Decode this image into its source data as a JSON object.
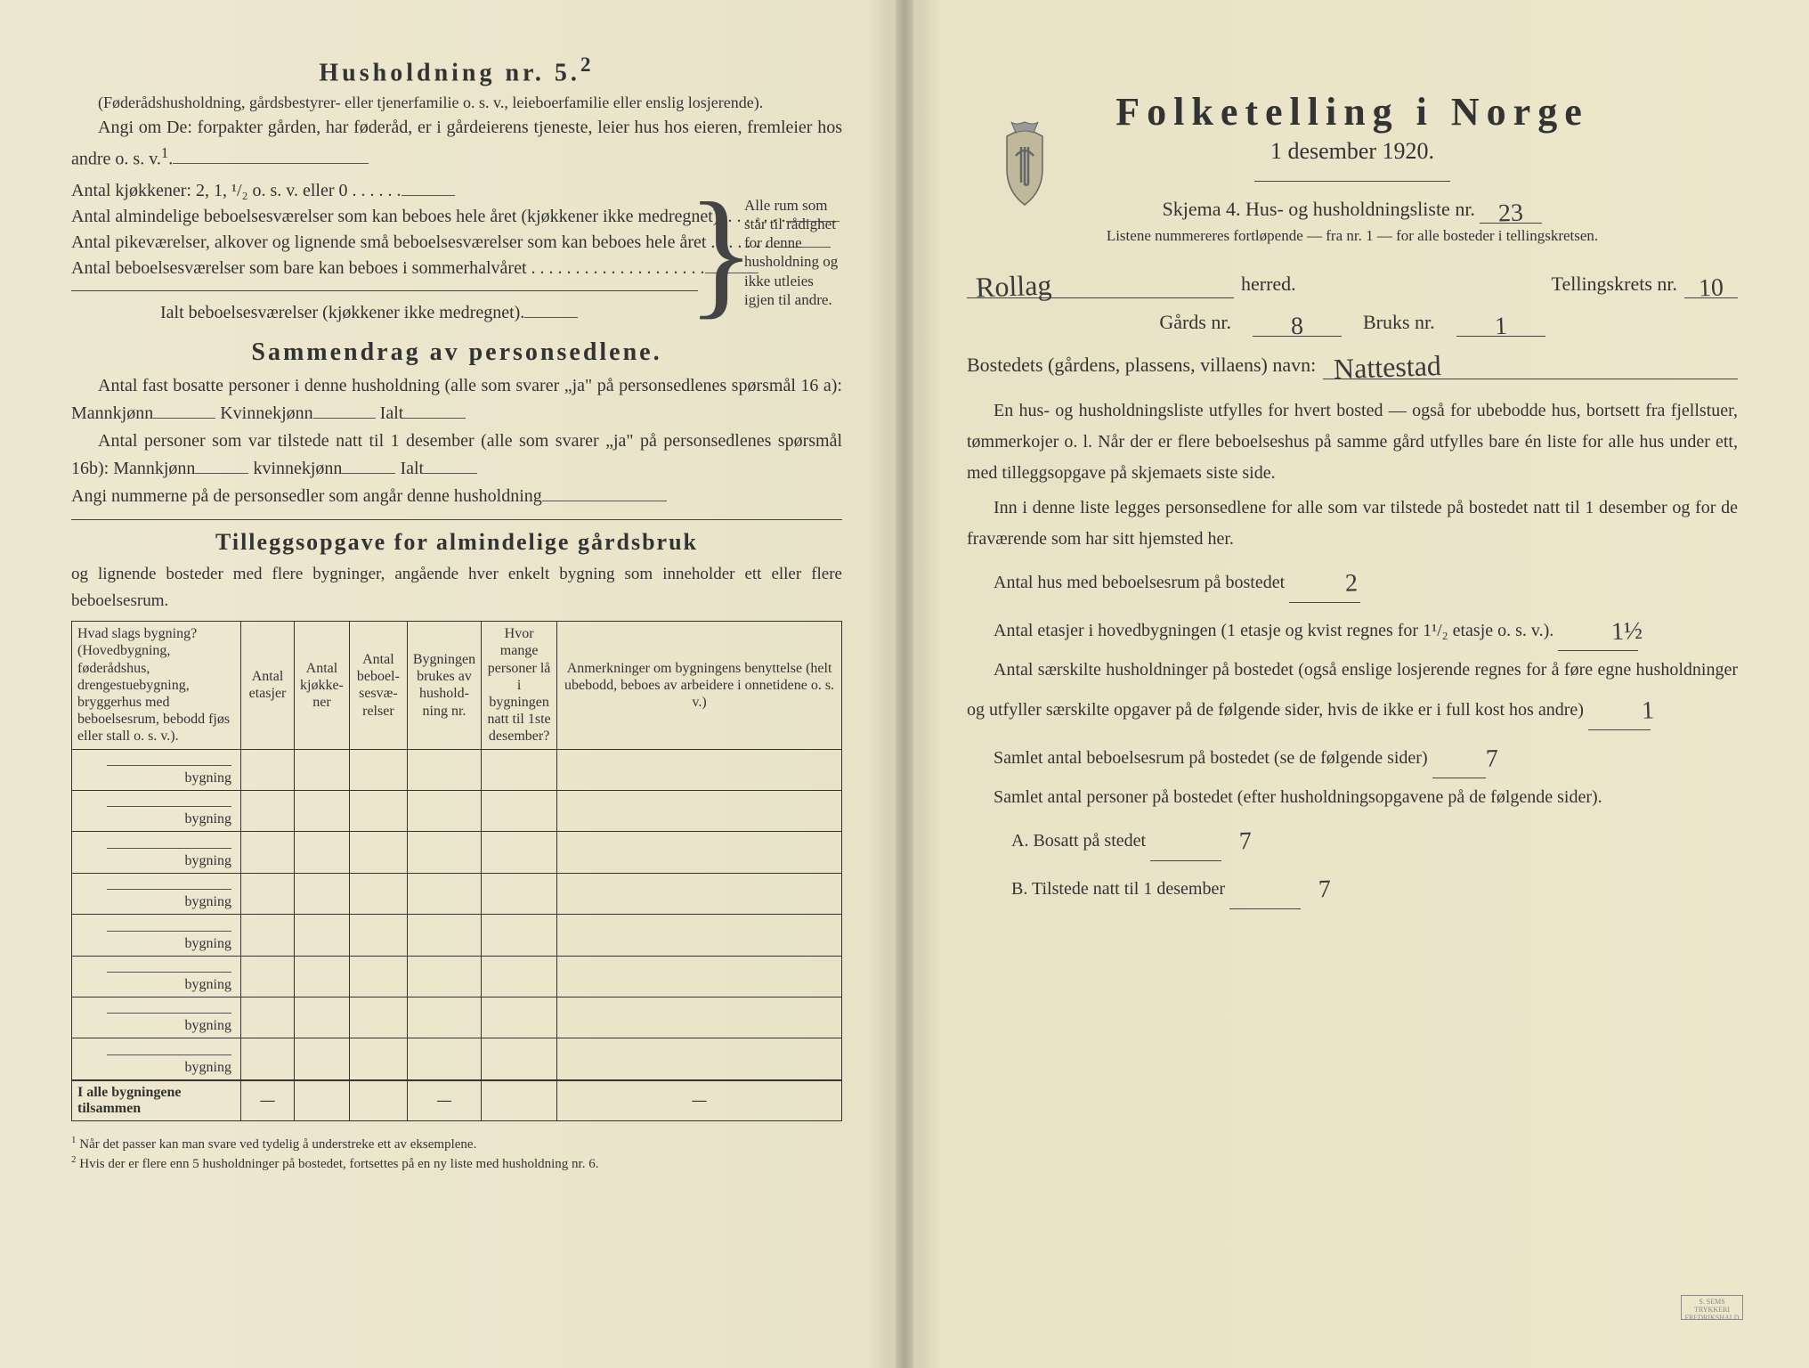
{
  "colors": {
    "paper": "#ece6cc",
    "ink": "#333333",
    "handwriting": "#3a3a3a",
    "rule": "#444444"
  },
  "left": {
    "heading": "Husholdning nr. 5.",
    "heading_sup": "2",
    "sub_note": "(Føderådshusholdning, gårdsbestyrer- eller tjenerfamilie o. s. v., leieboerfamilie eller enslig losjerende).",
    "angi_text_a": "Angi om De: forpakter gården, har føderåd, er i gårdeierens tjeneste, leier hus hos eieren, fremleier hos andre o. s. v.",
    "angi_sup": "1",
    "room_rows": [
      "Antal kjøkkener: 2, 1, ¹/₂ o. s. v. eller 0 . . . . . .",
      "Antal almindelige beboelsesværelser som kan beboes hele året (kjøkkener ikke medregnet). . . . . . . .",
      "Antal pikeværelser, alkover og lignende små beboelses­værelser som kan beboes hele året . . . . . . . .",
      "Antal beboelsesværelser som bare kan beboes i som­merhalvåret . . . . . . . . . . . . . . . . . . . ."
    ],
    "room_total": "Ialt beboelsesværelser (kjøkkener ikke medregnet).",
    "brace_text": "Alle rum som står til rådighet for denne hushold­ning og ikke ut­leies igjen til andre.",
    "sammendrag_heading": "Sammendrag av personsedlene.",
    "sammendrag_p1": "Antal fast bosatte personer i denne husholdning (alle som svarer „ja\" på personsedlenes spørsmål 16 a): Mannkjønn",
    "kvinne": "Kvinnekjønn",
    "ialt": "Ialt",
    "sammendrag_p2": "Antal personer som var tilstede natt til 1 desember (alle som svarer „ja\" på personsedlenes spørsmål 16b): Mannkjønn",
    "kvinne2": "kvinnekjønn",
    "sammendrag_p3": "Angi nummerne på de personsedler som angår denne husholdning",
    "tillegg_heading": "Tilleggsopgave for almindelige gårdsbruk",
    "tillegg_sub": "og lignende bosteder med flere bygninger, angående hver enkelt bygning som inneholder ett eller flere beboelsesrum.",
    "table": {
      "headers": [
        "Hvad slags bygning?\n(Hovedbygning, føderådshus, drengestuebygning, bryggerhus med beboelsesrum, bebodd fjøs eller stall o. s. v.).",
        "Antal etasjer",
        "Antal kjøkke­ner",
        "Antal beboel­sesvæ­relser",
        "Bygningen brukes av hushold­ning nr.",
        "Hvor mange personer lå i bygningen natt til 1ste desember?",
        "Anmerkninger om bygnin­gens benyttelse (helt ubebodd, beboes av arbeidere i onne­tidene o. s. v.)"
      ],
      "row_label": "bygning",
      "row_count": 8,
      "total_label": "I alle bygningene tilsammen",
      "dash": "—"
    },
    "footnote1": "Når det passer kan man svare ved tydelig å understreke ett av eksemplene.",
    "footnote2": "Hvis der er flere enn 5 husholdninger på bostedet, fortsettes på en ny liste med husholdning nr. 6."
  },
  "right": {
    "title": "Folketelling i Norge",
    "date": "1 desember 1920.",
    "skjema_label": "Skjema 4.  Hus- og husholdningsliste nr.",
    "skjema_nr": "23",
    "listene": "Listene nummereres fortløpende — fra nr. 1 — for alle bosteder i tellingskretsen.",
    "herred_value": "Rollag",
    "herred_label": "herred.",
    "krets_label": "Tellingskrets nr.",
    "krets_nr": "10",
    "gards_label": "Gårds nr.",
    "gards_nr": "8",
    "bruks_label": "Bruks nr.",
    "bruks_nr": "1",
    "bosted_label": "Bostedets (gårdens, plassens, villaens) navn:",
    "bosted_value": "Nattestad",
    "para1": "En hus- og husholdningsliste utfylles for hvert bosted — også for ubebodde hus, bortsett fra fjellstuer, tømmerkojer o. l. Når der er flere beboelseshus på samme gård utfylles bare én liste for alle hus under ett, med tilleggsopgave på skjemaets siste side.",
    "para2": "Inn i denne liste legges personsedlene for alle som var tilstede på bostedet natt til 1 desember og for de fraværende som har sitt hjemsted her.",
    "antal_hus_label": "Antal hus med beboelsesrum på bostedet",
    "antal_hus_value": "2",
    "etasjer_label_a": "Antal etasjer i hovedbygningen (1 etasje og kvist regnes for 1¹/₂ etasje o. s. v.).",
    "etasjer_value": "1½",
    "saerskilte": "Antal særskilte husholdninger på bostedet (også enslige losjerende regnes for å føre egne husholdninger og utfyller særskilte opgaver på de følgende sider, hvis de ikke er i full kost hos andre)",
    "saerskilte_value": "1",
    "samlet_rum_label": "Samlet antal beboelsesrum på bostedet (se de følgende sider)",
    "samlet_rum_value": "7",
    "samlet_pers_label": "Samlet antal personer på bostedet (efter husholdningsopgavene på de følgende sider).",
    "bosatt_label": "A.  Bosatt på stedet",
    "bosatt_value": "7",
    "tilstede_label": "B.  Tilstede natt til 1 desember",
    "tilstede_value": "7",
    "stamp": "S. SEMS TRYKKERI\nFREDRIKSHALD"
  }
}
